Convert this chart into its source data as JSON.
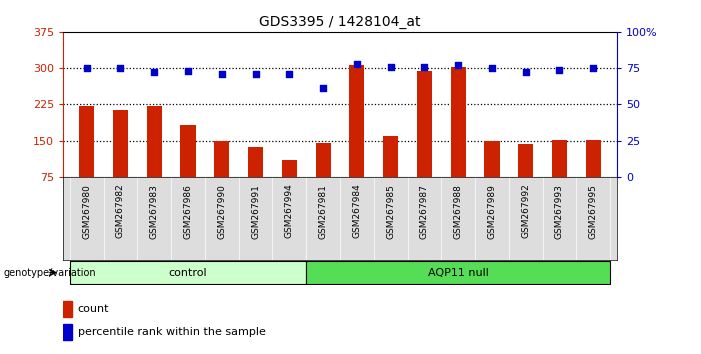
{
  "title": "GDS3395 / 1428104_at",
  "samples": [
    "GSM267980",
    "GSM267982",
    "GSM267983",
    "GSM267986",
    "GSM267990",
    "GSM267991",
    "GSM267994",
    "GSM267981",
    "GSM267984",
    "GSM267985",
    "GSM267987",
    "GSM267988",
    "GSM267989",
    "GSM267992",
    "GSM267993",
    "GSM267995"
  ],
  "counts": [
    222,
    213,
    222,
    182,
    150,
    138,
    110,
    145,
    307,
    160,
    295,
    302,
    150,
    143,
    152,
    152
  ],
  "percentiles": [
    75,
    75,
    72,
    73,
    71,
    71,
    71,
    61,
    78,
    76,
    76,
    77,
    75,
    72,
    74,
    75
  ],
  "control_count": 7,
  "groups": [
    "control",
    "AQP11 null"
  ],
  "ctrl_color": "#ccffcc",
  "aqp_color": "#55dd55",
  "bar_color": "#cc2200",
  "dot_color": "#0000cc",
  "ylim_left": [
    75,
    375
  ],
  "ylim_right": [
    0,
    100
  ],
  "yticks_left": [
    75,
    150,
    225,
    300,
    375
  ],
  "yticks_right": [
    0,
    25,
    50,
    75,
    100
  ],
  "yticklabels_right": [
    "0",
    "25",
    "50",
    "75",
    "100%"
  ],
  "hlines": [
    150,
    225,
    300
  ],
  "legend_count_color": "#cc2200",
  "legend_dot_color": "#0000cc",
  "legend_count_label": "count",
  "legend_dot_label": "percentile rank within the sample",
  "genotype_label": "genotype/variation",
  "title_fontsize": 10
}
